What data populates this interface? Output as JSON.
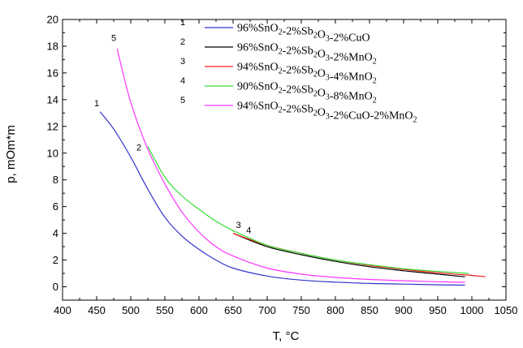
{
  "chart_data": {
    "type": "line",
    "xlabel": "T, °C",
    "ylabel": "p, mOm*m",
    "xlim": [
      400,
      1050
    ],
    "ylim": [
      -1,
      20
    ],
    "xticks": [
      400,
      450,
      500,
      550,
      600,
      650,
      700,
      750,
      800,
      850,
      900,
      950,
      1000,
      1050
    ],
    "yticks": [
      0,
      2,
      4,
      6,
      8,
      10,
      12,
      14,
      16,
      18,
      20
    ],
    "grid": false,
    "legend_position": "top-right",
    "series": [
      {
        "name": "96%SnO2-2%Sb2O3-2%CuO",
        "label_number": "1",
        "color": "#3333cc",
        "x": [
          455,
          475,
          500,
          525,
          550,
          575,
          600,
          625,
          650,
          700,
          750,
          800,
          850,
          900,
          950,
          990
        ],
        "y": [
          13.1,
          11.8,
          9.7,
          7.3,
          5.2,
          3.8,
          2.8,
          2.0,
          1.4,
          0.8,
          0.5,
          0.35,
          0.25,
          0.2,
          0.15,
          0.12
        ]
      },
      {
        "name": "96%SnO2-2%Sb2O3-2%MnO2",
        "label_number": "2",
        "color": "#000000",
        "x": [
          650,
          700,
          750,
          800,
          850,
          900,
          950,
          990
        ],
        "y": [
          4.0,
          3.0,
          2.4,
          1.9,
          1.5,
          1.2,
          0.95,
          0.75
        ]
      },
      {
        "name": "94%SnO2-2%Sb2O3-4%MnO2",
        "label_number": "3",
        "color": "#ff2020",
        "x": [
          650,
          700,
          750,
          800,
          850,
          900,
          950,
          1000,
          1020
        ],
        "y": [
          4.0,
          3.1,
          2.5,
          2.0,
          1.6,
          1.3,
          1.05,
          0.85,
          0.75
        ]
      },
      {
        "name": "90%SnO2-2%Sb2O3-8%MnO2",
        "label_number": "4",
        "color": "#33dd33",
        "x": [
          525,
          550,
          575,
          600,
          625,
          650,
          700,
          750,
          800,
          850,
          900,
          950,
          995
        ],
        "y": [
          10.5,
          8.2,
          6.8,
          5.8,
          4.9,
          4.2,
          3.1,
          2.5,
          2.0,
          1.65,
          1.35,
          1.15,
          1.0
        ]
      },
      {
        "name": "94%SnO2-2%Sb2O3-2%CuO-2%MnO2",
        "label_number": "5",
        "color": "#ff33ff",
        "x": [
          480,
          500,
          525,
          550,
          575,
          600,
          625,
          650,
          700,
          750,
          800,
          850,
          900,
          950,
          990
        ],
        "y": [
          17.8,
          13.8,
          10.3,
          7.7,
          5.6,
          4.1,
          3.0,
          2.3,
          1.4,
          0.95,
          0.7,
          0.55,
          0.45,
          0.38,
          0.33
        ]
      }
    ],
    "curve_labels": [
      {
        "text": "1",
        "x": 450,
        "y": 13.5
      },
      {
        "text": "2",
        "x": 512,
        "y": 10.2
      },
      {
        "text": "3",
        "x": 658,
        "y": 4.4
      },
      {
        "text": "4",
        "x": 673,
        "y": 4.0
      },
      {
        "text": "5",
        "x": 475,
        "y": 18.4
      }
    ]
  }
}
